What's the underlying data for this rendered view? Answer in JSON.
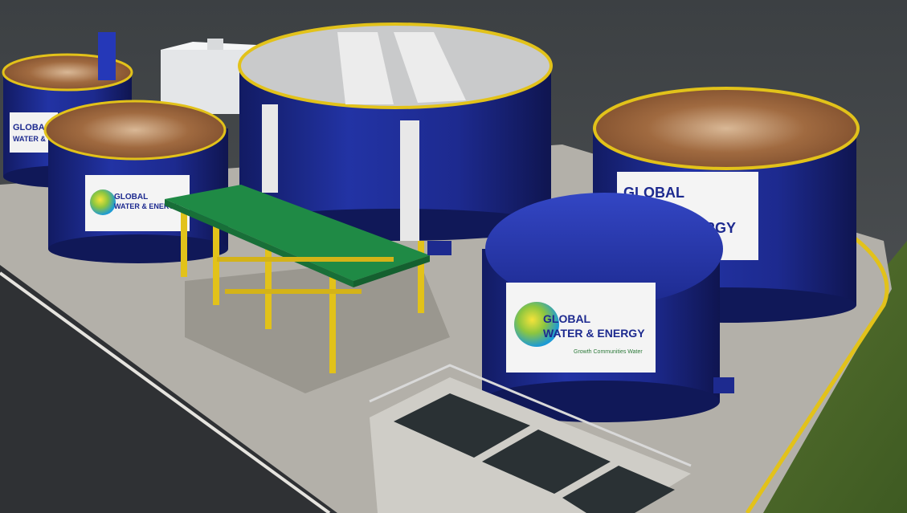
{
  "colors": {
    "tank_blue": "#1d2a8f",
    "tank_blue_dark": "#121b63",
    "tank_blue_light": "#2a3cb0",
    "sludge_brown": "#8a5a36",
    "sludge_light": "#c8a07a",
    "railing_yellow": "#e2c21a",
    "roof_green": "#1f8a45",
    "concrete": "#b7b4ad",
    "concrete_dark": "#8e8b85",
    "asphalt": "#3b3d40",
    "grass": "#4e6b2a",
    "water": "#2a3134",
    "logo_green": "#8dc63f",
    "logo_blue": "#1c9ad6",
    "logo_text": "#1d2a8f"
  },
  "signs": {
    "front": {
      "line1": "GLOBAL",
      "line2": "WATER & ENERGY",
      "tagline": "Growth Communities Water"
    },
    "right": {
      "line1": "GLOBAL",
      "line2": "ENERGY"
    },
    "left_mid": {
      "line1": "GLOBAL",
      "line2": "WATER & ENERGY"
    },
    "left_back": {
      "line1": "GLOBAL",
      "line2": "WATER &"
    }
  }
}
